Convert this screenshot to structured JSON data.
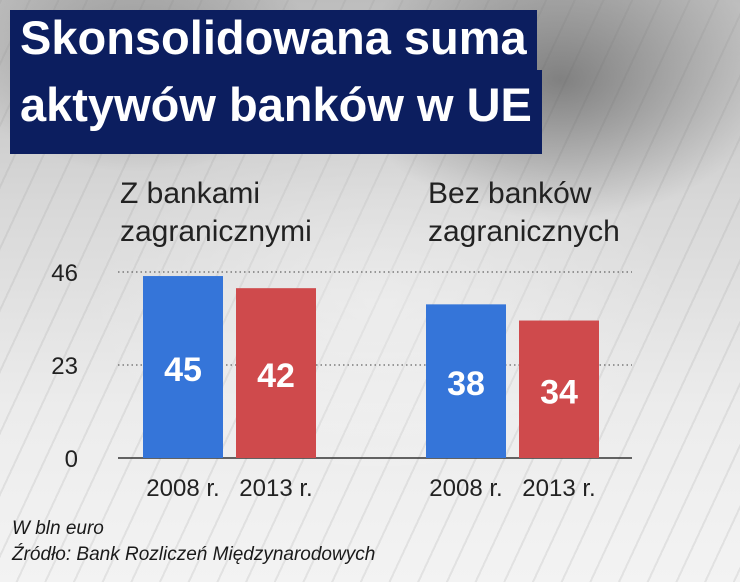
{
  "title_lines": [
    "Skonsolidowana suma",
    "aktywów banków w UE"
  ],
  "chart_data": {
    "type": "bar",
    "groups": [
      {
        "label_lines": [
          "Z bankami",
          "zagranicznymi"
        ],
        "categories": [
          "2008 r.",
          "2013 r."
        ],
        "values": [
          45,
          42
        ]
      },
      {
        "label_lines": [
          "Bez banków",
          "zagranicznych"
        ],
        "categories": [
          "2008 r.",
          "2013 r."
        ],
        "values": [
          38,
          34
        ]
      }
    ],
    "series_colors": [
      "#3575d9",
      "#cf4a4c"
    ],
    "yticks": [
      0,
      23,
      46
    ],
    "ylim": [
      0,
      46
    ],
    "grid": true
  },
  "notes": {
    "unit": "W bln euro",
    "source": "Źródło: Bank Rozliczeń Międzynarodowych"
  }
}
